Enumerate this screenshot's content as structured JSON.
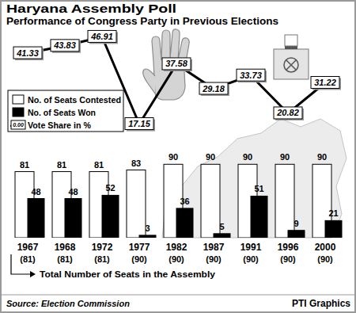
{
  "chart_data": {
    "type": "bar",
    "title": "Haryana Assembly Poll",
    "subtitle": "Performance of Congress Party in Previous Elections",
    "categories": [
      "1967",
      "1968",
      "1972",
      "1977",
      "1982",
      "1987",
      "1991",
      "1996",
      "2000"
    ],
    "category_sublabels": [
      "(81)",
      "(81)",
      "(81)",
      "(90)",
      "(90)",
      "(90)",
      "(90)",
      "(90)",
      "(90)"
    ],
    "x_label": "Total Number of Seats in the Assembly",
    "series": [
      {
        "name": "No. of Seats Contested",
        "type": "bar",
        "color": "#ffffff",
        "values": [
          81,
          81,
          81,
          83,
          90,
          90,
          90,
          90,
          90
        ]
      },
      {
        "name": "No. of Seats Won",
        "type": "bar",
        "color": "#000000",
        "values": [
          48,
          48,
          52,
          3,
          36,
          5,
          51,
          9,
          21
        ]
      },
      {
        "name": "Vote Share in %",
        "type": "line",
        "color": "#000000",
        "axis": "y2",
        "marker": "box",
        "line_style": "solid",
        "values": [
          41.33,
          43.83,
          46.91,
          17.15,
          37.58,
          29.18,
          33.73,
          20.82,
          31.22
        ]
      }
    ],
    "ylim": [
      0,
      100
    ],
    "y2lim": [
      0,
      50
    ],
    "tick_labels": false,
    "grid": false,
    "data_labels": true,
    "legend": "left",
    "legend_sample_label": "0.00",
    "source": "Source: Election Commission",
    "credit": "PTI Graphics"
  }
}
